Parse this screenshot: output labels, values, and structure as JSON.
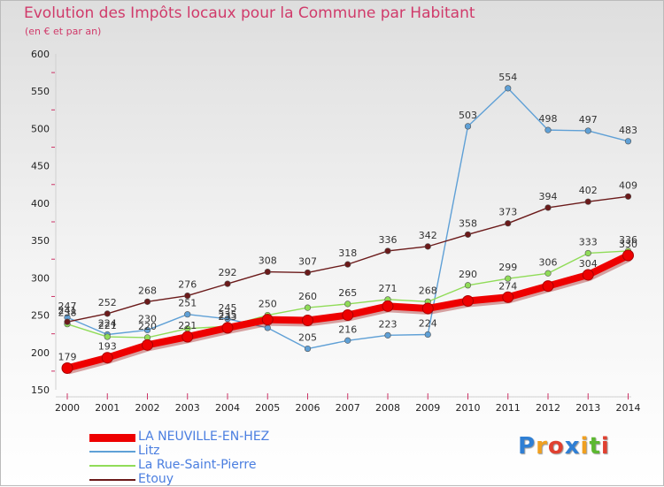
{
  "title": "Evolution des Impôts locaux pour la Commune par Habitant",
  "subtitle": "(en € et par an)",
  "logo": {
    "letters": [
      "P",
      "r",
      "o",
      "x",
      "i",
      "t",
      "i"
    ],
    "colors": [
      "#2f7fd4",
      "#f0a020",
      "#e04030",
      "#2f7fd4",
      "#f0a020",
      "#5cb830",
      "#e04030"
    ]
  },
  "chart_data": {
    "type": "line",
    "title": "Evolution des Impôts locaux pour la Commune par Habitant",
    "ylabel": "(en € et par an)",
    "xlabel": "",
    "ylim": [
      150,
      600
    ],
    "y_ticks": [
      150,
      200,
      250,
      300,
      350,
      400,
      450,
      500,
      550,
      600
    ],
    "categories": [
      "2000",
      "2001",
      "2002",
      "2003",
      "2004",
      "2005",
      "2006",
      "2007",
      "2008",
      "2009",
      "2010",
      "2011",
      "2012",
      "2013",
      "2014"
    ],
    "series": [
      {
        "name": "LA NEUVILLE-EN-HEZ",
        "color": "#ee0000",
        "values": [
          179,
          193,
          210,
          221,
          233,
          244,
          243,
          250,
          262,
          259,
          269,
          274,
          289,
          304,
          330
        ],
        "labels_shown": [
          true,
          true,
          false,
          true,
          true,
          false,
          false,
          false,
          false,
          false,
          false,
          true,
          false,
          true,
          true
        ]
      },
      {
        "name": "Litz",
        "color": "#5fa0d6",
        "values": [
          247,
          224,
          230,
          251,
          245,
          233,
          205,
          216,
          223,
          224,
          503,
          554,
          498,
          497,
          483
        ],
        "labels_shown": [
          true,
          true,
          true,
          true,
          true,
          false,
          true,
          true,
          true,
          true,
          true,
          true,
          true,
          true,
          true
        ]
      },
      {
        "name": "La Rue-Saint-Pierre",
        "color": "#90dc58",
        "values": [
          238,
          221,
          220,
          232,
          235,
          250,
          260,
          265,
          271,
          268,
          290,
          299,
          306,
          333,
          336
        ],
        "labels_shown": [
          true,
          true,
          true,
          false,
          true,
          true,
          true,
          true,
          true,
          true,
          true,
          true,
          true,
          true,
          true
        ]
      },
      {
        "name": "Etouy",
        "color": "#6b1a1a",
        "values": [
          241,
          252,
          268,
          276,
          292,
          308,
          307,
          318,
          336,
          342,
          358,
          373,
          394,
          402,
          409
        ],
        "labels_shown": [
          true,
          true,
          true,
          true,
          true,
          true,
          true,
          true,
          true,
          true,
          true,
          true,
          true,
          true,
          true
        ]
      }
    ],
    "legend_position": "bottom-left",
    "grid": false
  }
}
